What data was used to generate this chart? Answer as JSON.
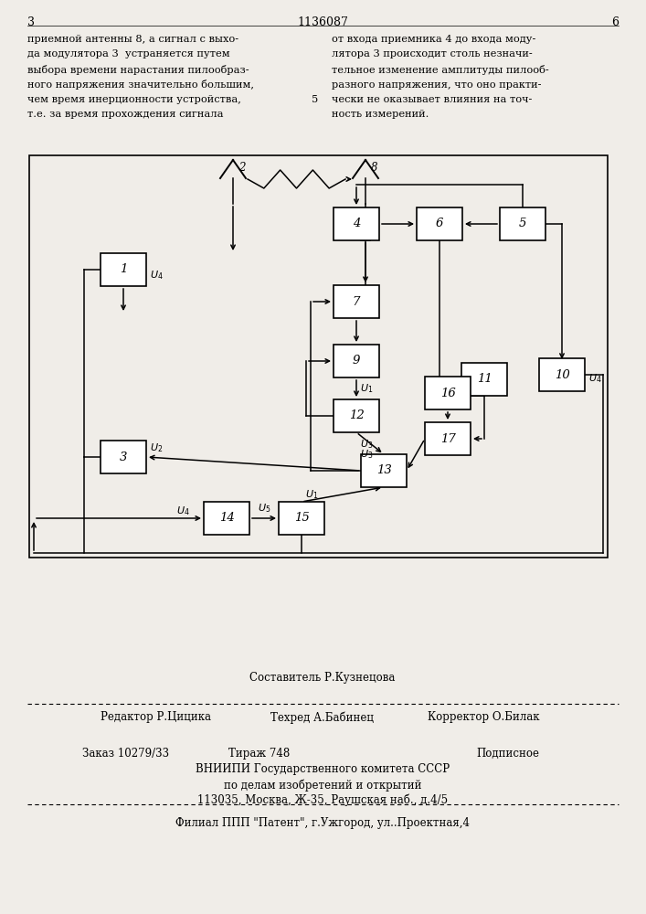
{
  "bg_color": "#f0ede8",
  "box_color": "white",
  "line_color": "black",
  "text_color": "black",
  "title": "1136087",
  "page_left": "3",
  "page_right": "6",
  "top_text_left": "приемной антенны 8, а сигнал с выхо-\nда модулятора 3  устраняется путем\nвыбора времени нарастания пилообраз-\nного напряжения значительно большим,\nчем время инерционности устройства,\nт.е. за время прохождения сигнала",
  "top_text_right": "от входа приемника 4 до входа моду-\nлятора 3 происходит столь незначи-\nтельное изменение амплитуды пилооб-\nразного напряжения, что оно практи-\nчески не оказывает влияния на точ-\nность измерений.",
  "line_number_5": "5",
  "bottom_composer": "Составитель Р.Кузнецова",
  "bottom_techred": "Техред А.Бабинец",
  "bottom_editor": "Редактор Р.Цицика",
  "bottom_corrector": "Корректор О.Билак",
  "bottom_order": "Заказ 10279/33",
  "bottom_tirazh": "Тираж 748",
  "bottom_podpisnoe": "Подписное",
  "bottom_vniipи": "ВНИИПИ Государственного комитета СССР",
  "bottom_dela": "по делам изобретений и открытий",
  "bottom_addr": "113035, Москва, Ж-35, Раушская наб., д.4/5",
  "bottom_filial": "Филиал ППП \"Патент\", г.Ужгород, ул..Проектная,4"
}
